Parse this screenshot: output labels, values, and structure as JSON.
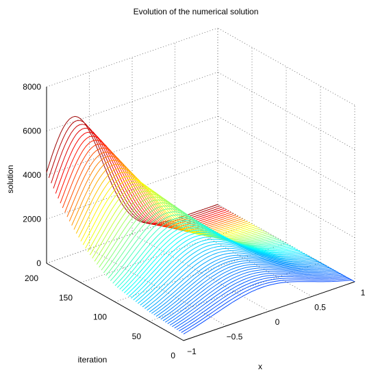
{
  "chart_data": {
    "type": "surface",
    "title": "Evolution of the numerical solution",
    "xlabel": "x",
    "ylabel": "iteration",
    "zlabel": "solution",
    "x_ticks": [
      "−1",
      "−0.5",
      "0",
      "0.5",
      "1"
    ],
    "y_ticks": [
      "0",
      "50",
      "100",
      "150",
      "200"
    ],
    "z_ticks": [
      "0",
      "2000",
      "4000",
      "6000",
      "8000"
    ],
    "xlim": [
      -1,
      1
    ],
    "ylim": [
      0,
      200
    ],
    "zlim": [
      0,
      8000
    ],
    "grid": true,
    "colormap": "jet",
    "num_curves": 60,
    "samples": [
      {
        "iteration": 0,
        "peak_x": 0.0,
        "peak_value": 1400
      },
      {
        "iteration": 50,
        "peak_x": -0.1,
        "peak_value": 2000
      },
      {
        "iteration": 100,
        "peak_x": -0.25,
        "peak_value": 3000
      },
      {
        "iteration": 150,
        "peak_x": -0.5,
        "peak_value": 4600
      },
      {
        "iteration": 200,
        "peak_x": -0.7,
        "peak_value": 7000
      }
    ]
  }
}
